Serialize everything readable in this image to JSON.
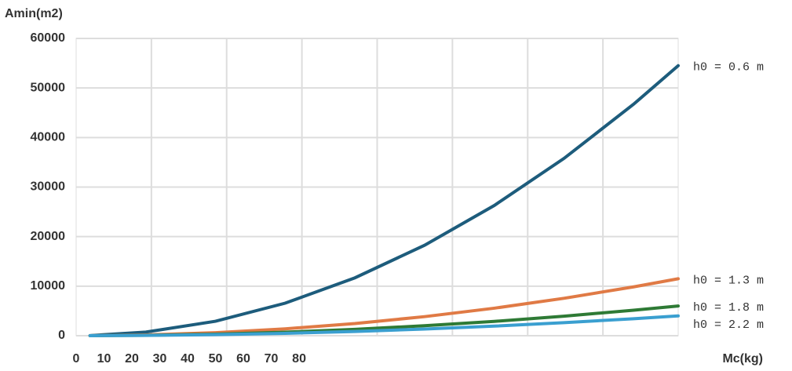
{
  "chart_data": {
    "type": "line",
    "y_label": "Amin(m2)",
    "x_label": "Mc(kg)",
    "x": [
      5,
      25,
      50,
      75,
      100,
      125,
      150,
      175,
      200,
      216
    ],
    "series": [
      {
        "name": "h0 = 0.6 m",
        "color": "#1d5c7c",
        "values": [
          30,
          730,
          2920,
          6570,
          11680,
          18250,
          26280,
          35770,
          46720,
          54500
        ]
      },
      {
        "name": "h0 = 1.3 m",
        "color": "#e07a45",
        "values": [
          6,
          150,
          620,
          1390,
          2460,
          3850,
          5550,
          7550,
          9860,
          11500
        ]
      },
      {
        "name": "h0 = 1.8 m",
        "color": "#2e7a35",
        "values": [
          3,
          80,
          320,
          720,
          1290,
          2010,
          2890,
          3940,
          5140,
          6000
        ]
      },
      {
        "name": "h0 = 2.2 m",
        "color": "#3a9fd0",
        "values": [
          2,
          50,
          210,
          480,
          860,
          1340,
          1930,
          2630,
          3430,
          4000
        ]
      }
    ],
    "xlim": [
      0,
      216
    ],
    "xticks": [
      0,
      10,
      20,
      30,
      40,
      50,
      60,
      70,
      80
    ],
    "ylim": [
      0,
      60000
    ],
    "yticks": [
      0,
      10000,
      20000,
      30000,
      40000,
      50000,
      60000
    ],
    "grid": true
  }
}
